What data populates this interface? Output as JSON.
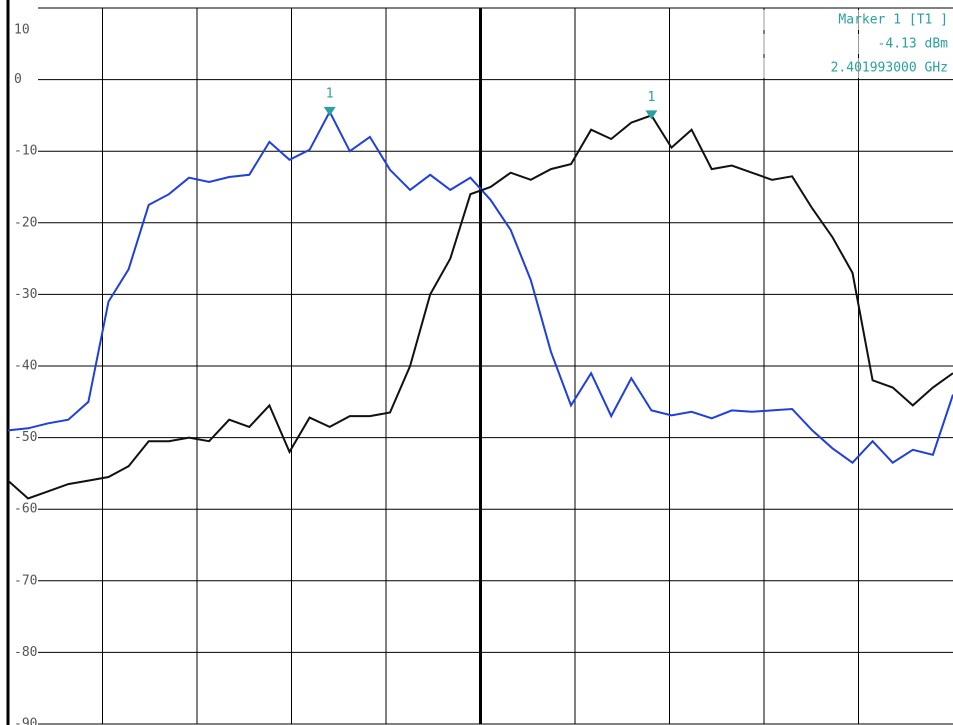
{
  "chart_data": {
    "type": "line",
    "ylim": [
      -90,
      10
    ],
    "yticks": [
      -90,
      -80,
      -70,
      -60,
      -50,
      -40,
      -30,
      -20,
      -10,
      0,
      10
    ],
    "grid": true,
    "categories": [
      null,
      null,
      null,
      null,
      null,
      null,
      null,
      null,
      null,
      null,
      null,
      null,
      null,
      null,
      null,
      null,
      null,
      null,
      null,
      null,
      null,
      null,
      null,
      null,
      null,
      null,
      null,
      null,
      null,
      null,
      null,
      null,
      null,
      null,
      null,
      null,
      null,
      null,
      null,
      null,
      null,
      null,
      null,
      null,
      null,
      null,
      null,
      null
    ],
    "series": [
      {
        "color": "#1f3fe0",
        "values": [
          -49,
          -48.7,
          -48,
          -47.5,
          -45,
          -31,
          -26.5,
          -17.5,
          -16,
          -13.7,
          -14.3,
          -13.6,
          -13.3,
          -8.7,
          -11.2,
          -9.8,
          -4.5,
          -10,
          -8,
          -12.6,
          -15.4,
          -13.3,
          -15.4,
          -13.7,
          -16.8,
          -21,
          -28,
          -38,
          -45.5,
          -41,
          -47,
          -41.7,
          -46.2,
          -46.9,
          -46.4,
          -47.3,
          -46.2,
          -46.4,
          -46.2,
          -46,
          -49,
          -51.5,
          -53.5,
          -50.5,
          -53.5,
          -51.7,
          -52.4,
          -44
        ]
      },
      {
        "color": "#111111",
        "values": [
          -56,
          -58.5,
          -57.5,
          -56.5,
          -56,
          -55.5,
          -54,
          -50.5,
          -50.5,
          -50,
          -50.5,
          -47.5,
          -48.5,
          -45.5,
          -52,
          -47.2,
          -48.5,
          -47,
          -47,
          -46.5,
          -40,
          -30,
          -25,
          -16,
          -15,
          -13,
          -14,
          -12.5,
          -11.8,
          -7,
          -8.3,
          -6,
          -5,
          -9.5,
          -7,
          -12.5,
          -12,
          -13,
          -14,
          -13.5,
          -18,
          -22,
          -27,
          -42,
          -43,
          -45.5,
          -43,
          -41
        ]
      }
    ],
    "marker_color": "#2aa0a0",
    "marker_labels": [
      "1",
      "1"
    ],
    "marker_info": [
      "Marker 1 [T1 ]",
      "-4.13 dBm",
      "2.401993000 GHz"
    ]
  }
}
